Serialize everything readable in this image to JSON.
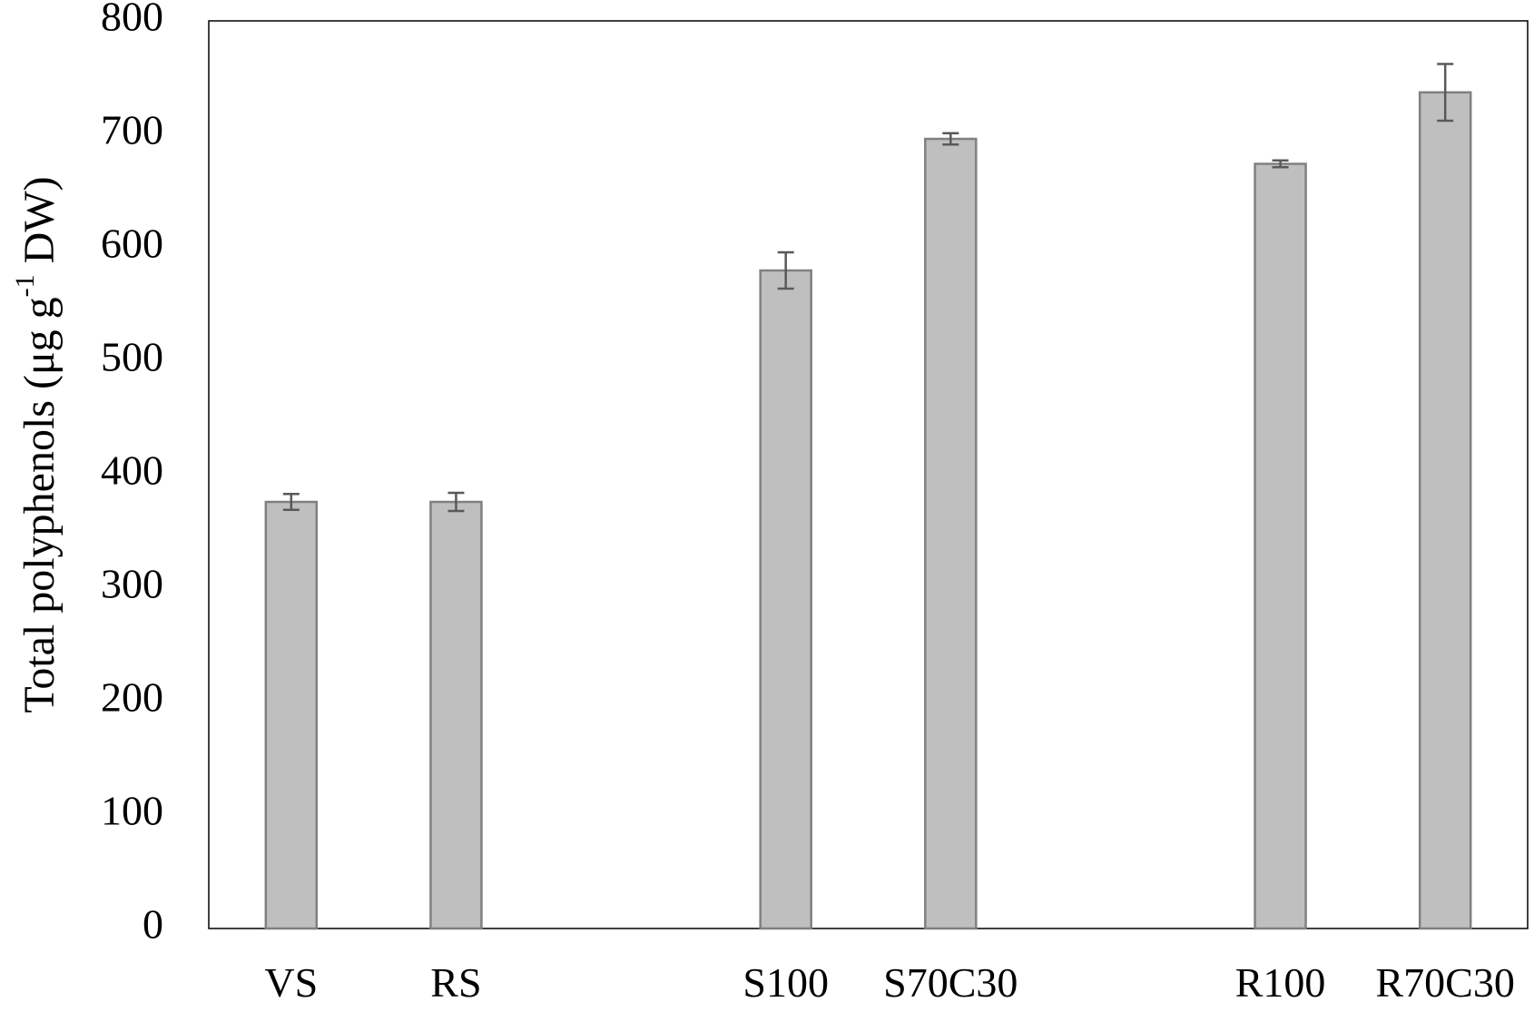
{
  "chart_data": {
    "type": "bar",
    "categories": [
      "VS",
      "RS",
      "",
      "S100",
      "S70C30",
      "",
      "R100",
      "R70C30"
    ],
    "values": [
      376,
      376,
      null,
      580,
      696,
      null,
      674,
      737
    ],
    "errors": [
      7,
      8,
      null,
      16,
      5,
      null,
      3,
      25
    ],
    "ylabel": "Total polyphenols (μg g-1 DW)",
    "ylabel_parts": {
      "main": "Total polyphenols (μg g",
      "sup": "-1",
      "tail": " DW)"
    },
    "ylim": [
      0,
      800
    ],
    "yticks": [
      "0",
      "100",
      "200",
      "300",
      "400",
      "500",
      "600",
      "700",
      "800"
    ],
    "grid": false,
    "legend": "none",
    "colors": {
      "bar_fill": "#bfbfbf",
      "bar_stroke": "#808080",
      "error_bar": "#595959",
      "axis": "#000000"
    }
  }
}
